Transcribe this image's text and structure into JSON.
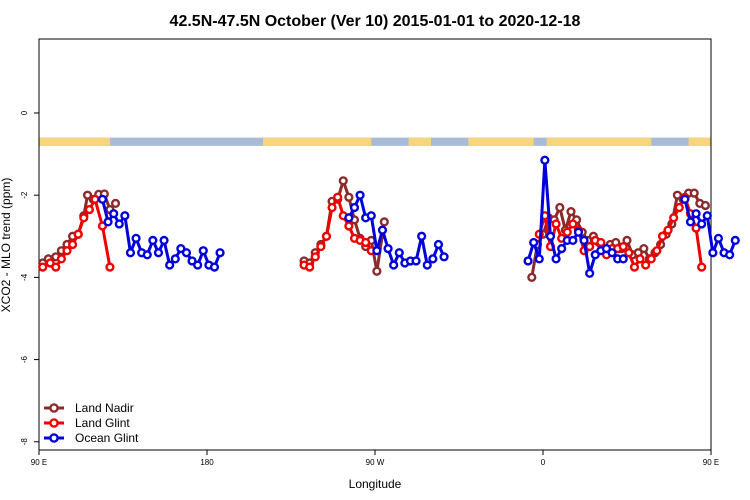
{
  "chart_data": {
    "type": "line",
    "title": "42.5N-47.5N October (Ver 10)   2015-01-01 to 2020-12-18",
    "xlabel": "Longitude",
    "ylabel": "XCO2 - MLO trend (ppm)",
    "xlim": [
      90,
      450
    ],
    "ylim": [
      -8.2,
      1.8
    ],
    "x_ticks": [
      {
        "value": 90,
        "label": "90 E"
      },
      {
        "value": 180,
        "label": "180"
      },
      {
        "value": 270,
        "label": "90 W"
      },
      {
        "value": 360,
        "label": "0"
      },
      {
        "value": 450,
        "label": "90 E"
      },
      {
        "value": 540,
        "label": "180"
      }
    ],
    "y_ticks": [
      {
        "value": 0,
        "label": "0"
      },
      {
        "value": -2,
        "label": "-2"
      },
      {
        "value": -4,
        "label": "-4"
      },
      {
        "value": -6,
        "label": "-6"
      },
      {
        "value": -8,
        "label": "-8"
      }
    ],
    "grid": false,
    "legend_position": "bottom-left",
    "surface_band": {
      "y_range": [
        -0.8,
        -0.6
      ],
      "land_color": "#f7d57a",
      "ocean_color": "#a8bcd8",
      "land_segments": [
        [
          90,
          128
        ],
        [
          210,
          268
        ],
        [
          288,
          300
        ],
        [
          320,
          355
        ],
        [
          362,
          418
        ],
        [
          438,
          490
        ]
      ]
    },
    "series": [
      {
        "name": "Land Nadir",
        "color": "#8b2a2a",
        "points": [
          [
            92,
            -3.65
          ],
          [
            95,
            -3.55
          ],
          [
            99,
            -3.5
          ],
          [
            102,
            -3.35
          ],
          [
            105,
            -3.2
          ],
          [
            108,
            -3.0
          ],
          [
            111,
            -2.95
          ],
          [
            114,
            -2.5
          ],
          [
            116,
            -2.0
          ],
          [
            119,
            -2.1
          ],
          [
            122,
            -1.98
          ],
          [
            125,
            -1.97
          ],
          [
            128,
            -2.35
          ],
          [
            131,
            -2.2
          ],
          [
            232,
            -3.6
          ],
          [
            235,
            -3.65
          ],
          [
            238,
            -3.4
          ],
          [
            241,
            -3.2
          ],
          [
            244,
            -3.0
          ],
          [
            247,
            -2.15
          ],
          [
            250,
            -2.1
          ],
          [
            253,
            -1.65
          ],
          [
            256,
            -2.05
          ],
          [
            259,
            -2.6
          ],
          [
            262,
            -3.05
          ],
          [
            265,
            -3.25
          ],
          [
            268,
            -3.1
          ],
          [
            271,
            -3.85
          ],
          [
            275,
            -2.65
          ],
          [
            354,
            -4.0
          ],
          [
            357,
            -3.2
          ],
          [
            360,
            -2.95
          ],
          [
            363,
            -2.55
          ],
          [
            366,
            -2.6
          ],
          [
            369,
            -2.3
          ],
          [
            372,
            -2.85
          ],
          [
            375,
            -2.4
          ],
          [
            378,
            -2.6
          ],
          [
            381,
            -2.9
          ],
          [
            384,
            -3.1
          ],
          [
            387,
            -3.0
          ],
          [
            390,
            -3.15
          ],
          [
            393,
            -3.35
          ],
          [
            396,
            -3.2
          ],
          [
            399,
            -3.15
          ],
          [
            402,
            -3.3
          ],
          [
            405,
            -3.1
          ],
          [
            408,
            -3.45
          ],
          [
            411,
            -3.4
          ],
          [
            414,
            -3.3
          ],
          [
            417,
            -3.55
          ],
          [
            420,
            -3.4
          ],
          [
            423,
            -3.2
          ],
          [
            426,
            -2.95
          ],
          [
            429,
            -2.7
          ],
          [
            432,
            -2.0
          ],
          [
            435,
            -2.1
          ],
          [
            438,
            -1.95
          ],
          [
            441,
            -1.95
          ],
          [
            444,
            -2.2
          ],
          [
            447,
            -2.25
          ]
        ]
      },
      {
        "name": "Land Glint",
        "color": "#ee0000",
        "points": [
          [
            92,
            -3.75
          ],
          [
            96,
            -3.65
          ],
          [
            99,
            -3.75
          ],
          [
            102,
            -3.55
          ],
          [
            105,
            -3.35
          ],
          [
            108,
            -3.2
          ],
          [
            111,
            -2.95
          ],
          [
            114,
            -2.55
          ],
          [
            117,
            -2.35
          ],
          [
            120,
            -2.1
          ],
          [
            124,
            -2.75
          ],
          [
            128,
            -3.75
          ],
          [
            232,
            -3.7
          ],
          [
            235,
            -3.75
          ],
          [
            238,
            -3.5
          ],
          [
            241,
            -3.25
          ],
          [
            244,
            -3.0
          ],
          [
            247,
            -2.3
          ],
          [
            250,
            -2.05
          ],
          [
            253,
            -2.5
          ],
          [
            256,
            -2.75
          ],
          [
            259,
            -3.05
          ],
          [
            262,
            -3.1
          ],
          [
            265,
            -3.15
          ],
          [
            268,
            -3.35
          ],
          [
            358,
            -2.95
          ],
          [
            361,
            -2.5
          ],
          [
            364,
            -3.25
          ],
          [
            367,
            -2.7
          ],
          [
            370,
            -3.05
          ],
          [
            373,
            -2.9
          ],
          [
            376,
            -2.7
          ],
          [
            379,
            -2.85
          ],
          [
            382,
            -3.35
          ],
          [
            385,
            -3.25
          ],
          [
            388,
            -3.1
          ],
          [
            391,
            -3.15
          ],
          [
            394,
            -3.45
          ],
          [
            397,
            -3.3
          ],
          [
            400,
            -3.3
          ],
          [
            403,
            -3.25
          ],
          [
            406,
            -3.4
          ],
          [
            409,
            -3.75
          ],
          [
            412,
            -3.55
          ],
          [
            415,
            -3.7
          ],
          [
            418,
            -3.55
          ],
          [
            421,
            -3.35
          ],
          [
            424,
            -3.0
          ],
          [
            427,
            -2.85
          ],
          [
            430,
            -2.55
          ],
          [
            433,
            -2.3
          ],
          [
            436,
            -2.05
          ],
          [
            439,
            -2.45
          ],
          [
            442,
            -2.8
          ],
          [
            445,
            -3.75
          ]
        ]
      },
      {
        "name": "Ocean Glint",
        "color": "#0000dd",
        "points": [
          [
            124,
            -2.1
          ],
          [
            127,
            -2.65
          ],
          [
            130,
            -2.45
          ],
          [
            133,
            -2.7
          ],
          [
            136,
            -2.5
          ],
          [
            139,
            -3.4
          ],
          [
            142,
            -3.05
          ],
          [
            145,
            -3.4
          ],
          [
            148,
            -3.45
          ],
          [
            151,
            -3.1
          ],
          [
            154,
            -3.4
          ],
          [
            157,
            -3.1
          ],
          [
            160,
            -3.7
          ],
          [
            163,
            -3.55
          ],
          [
            166,
            -3.3
          ],
          [
            169,
            -3.4
          ],
          [
            172,
            -3.6
          ],
          [
            175,
            -3.7
          ],
          [
            178,
            -3.35
          ],
          [
            181,
            -3.7
          ],
          [
            184,
            -3.75
          ],
          [
            187,
            -3.4
          ],
          [
            256,
            -2.55
          ],
          [
            259,
            -2.3
          ],
          [
            262,
            -2.0
          ],
          [
            265,
            -2.55
          ],
          [
            268,
            -2.5
          ],
          [
            271,
            -3.35
          ],
          [
            274,
            -2.85
          ],
          [
            277,
            -3.3
          ],
          [
            280,
            -3.7
          ],
          [
            283,
            -3.4
          ],
          [
            286,
            -3.65
          ],
          [
            289,
            -3.6
          ],
          [
            292,
            -3.6
          ],
          [
            295,
            -3.0
          ],
          [
            298,
            -3.7
          ],
          [
            301,
            -3.55
          ],
          [
            304,
            -3.2
          ],
          [
            307,
            -3.5
          ],
          [
            352,
            -3.6
          ],
          [
            355,
            -3.15
          ],
          [
            358,
            -3.55
          ],
          [
            361,
            -1.15
          ],
          [
            364,
            -3.0
          ],
          [
            367,
            -3.55
          ],
          [
            370,
            -3.3
          ],
          [
            373,
            -3.1
          ],
          [
            376,
            -3.1
          ],
          [
            379,
            -2.9
          ],
          [
            382,
            -3.1
          ],
          [
            385,
            -3.9
          ],
          [
            388,
            -3.45
          ],
          [
            391,
            -3.35
          ],
          [
            394,
            -3.3
          ],
          [
            397,
            -3.4
          ],
          [
            400,
            -3.55
          ],
          [
            403,
            -3.55
          ],
          [
            436,
            -2.1
          ],
          [
            439,
            -2.65
          ],
          [
            442,
            -2.45
          ],
          [
            445,
            -2.7
          ],
          [
            448,
            -2.5
          ],
          [
            451,
            -3.4
          ],
          [
            454,
            -3.05
          ],
          [
            457,
            -3.4
          ],
          [
            460,
            -3.45
          ],
          [
            463,
            -3.1
          ]
        ]
      }
    ]
  }
}
